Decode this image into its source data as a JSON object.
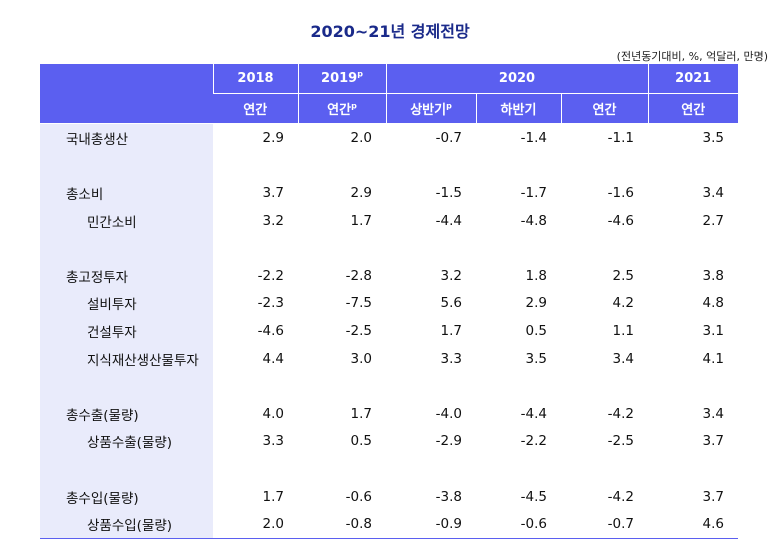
{
  "title": "2020~21년 경제전망",
  "unit_note": "(전년동기대비, %, 억달러, 만명)",
  "header": {
    "years": [
      "2018",
      "2019",
      "2020",
      "2021"
    ],
    "year_2019_sup": "p",
    "periods": [
      "연간",
      "연간",
      "상반기",
      "하반기",
      "연간",
      "연간"
    ],
    "period_sups": [
      "",
      "p",
      "p",
      "",
      "",
      ""
    ]
  },
  "rows": [
    {
      "label": "국내총생산",
      "sub": false,
      "values": [
        "2.9",
        "2.0",
        "-0.7",
        "-1.4",
        "-1.1",
        "3.5"
      ]
    },
    {
      "spacer": true
    },
    {
      "label": "총소비",
      "sub": false,
      "values": [
        "3.7",
        "2.9",
        "-1.5",
        "-1.7",
        "-1.6",
        "3.4"
      ]
    },
    {
      "label": "민간소비",
      "sub": true,
      "values": [
        "3.2",
        "1.7",
        "-4.4",
        "-4.8",
        "-4.6",
        "2.7"
      ]
    },
    {
      "spacer": true
    },
    {
      "label": "총고정투자",
      "sub": false,
      "values": [
        "-2.2",
        "-2.8",
        "3.2",
        "1.8",
        "2.5",
        "3.8"
      ]
    },
    {
      "label": "설비투자",
      "sub": true,
      "values": [
        "-2.3",
        "-7.5",
        "5.6",
        "2.9",
        "4.2",
        "4.8"
      ]
    },
    {
      "label": "건설투자",
      "sub": true,
      "values": [
        "-4.6",
        "-2.5",
        "1.7",
        "0.5",
        "1.1",
        "3.1"
      ]
    },
    {
      "label": "지식재산생산물투자",
      "sub": true,
      "values": [
        "4.4",
        "3.0",
        "3.3",
        "3.5",
        "3.4",
        "4.1"
      ]
    },
    {
      "spacer": true
    },
    {
      "label": "총수출(물량)",
      "sub": false,
      "values": [
        "4.0",
        "1.7",
        "-4.0",
        "-4.4",
        "-4.2",
        "3.4"
      ]
    },
    {
      "label": "상품수출(물량)",
      "sub": true,
      "values": [
        "3.3",
        "0.5",
        "-2.9",
        "-2.2",
        "-2.5",
        "3.7"
      ]
    },
    {
      "spacer": true
    },
    {
      "label": "총수입(물량)",
      "sub": false,
      "values": [
        "1.7",
        "-0.6",
        "-3.8",
        "-4.5",
        "-4.2",
        "3.7"
      ]
    },
    {
      "label": "상품수입(물량)",
      "sub": true,
      "values": [
        "2.0",
        "-0.8",
        "-0.9",
        "-0.6",
        "-0.7",
        "4.6"
      ]
    }
  ]
}
